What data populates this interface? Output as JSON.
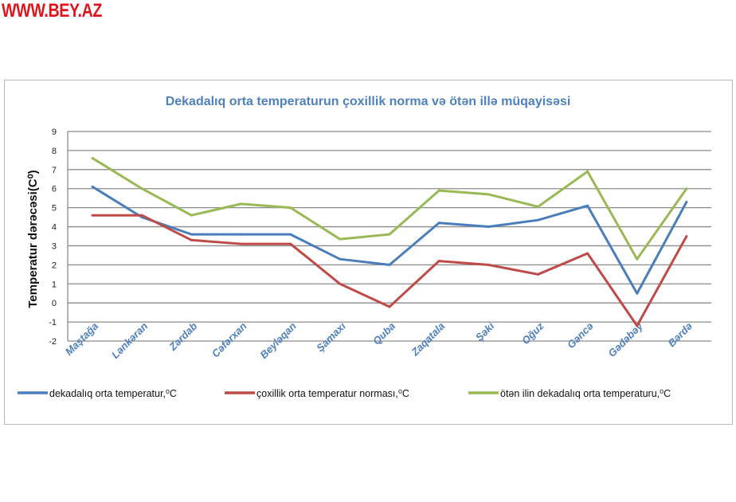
{
  "watermark": "WWW.BEY.AZ",
  "chart_data": {
    "type": "line",
    "title": "Dekadalıq orta temperaturun çoxillik   norma və ötən illə müqayisəsi",
    "xlabel": "",
    "ylabel": "Temperatur dərəcəsi(C⁰)",
    "ylim": [
      -2,
      9
    ],
    "yticks": [
      -2,
      -1,
      0,
      1,
      2,
      3,
      4,
      5,
      6,
      7,
      8,
      9
    ],
    "grid": true,
    "legend_position": "bottom",
    "categories": [
      "Maştağa",
      "Lənkəran",
      "Zərdab",
      "Cəfərxan",
      "Beyləqan",
      "Şamaxı",
      "Quba",
      "Zaqatala",
      "Şəki",
      "Oğuz",
      "Gəncə",
      "Gədəbəy",
      "Bərdə"
    ],
    "series": [
      {
        "name": "dekadalıq orta temperatur,⁰C",
        "color": "#4a7ebb",
        "values": [
          6.1,
          4.5,
          3.6,
          3.6,
          3.6,
          2.3,
          2.0,
          4.2,
          4.0,
          4.35,
          5.1,
          0.5,
          5.3
        ]
      },
      {
        "name": "çoxillik orta temperatur norması,⁰C",
        "color": "#be4b48",
        "values": [
          4.6,
          4.6,
          3.3,
          3.1,
          3.1,
          1.0,
          -0.2,
          2.2,
          2.0,
          1.5,
          2.6,
          -1.2,
          3.5
        ]
      },
      {
        "name": "ötən ilin dekadalıq orta temperaturu,⁰C",
        "color": "#98b954",
        "values": [
          7.6,
          6.0,
          4.6,
          5.2,
          5.0,
          3.35,
          3.6,
          5.9,
          5.7,
          5.05,
          6.9,
          2.3,
          6.0
        ]
      }
    ]
  }
}
